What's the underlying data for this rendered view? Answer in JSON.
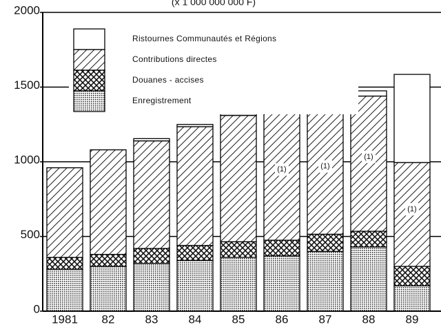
{
  "chart_data": {
    "type": "stacked_bar",
    "subtitle": "(x 1 000 000 000 F)",
    "categories": [
      "1981",
      "82",
      "83",
      "84",
      "85",
      "86",
      "87",
      "88",
      "89"
    ],
    "series": [
      {
        "name": "Enregistrement",
        "pattern": "dots",
        "values": [
          280,
          300,
          320,
          340,
          360,
          370,
          400,
          430,
          170
        ]
      },
      {
        "name": "Douanes - accises",
        "pattern": "crosshatch",
        "values": [
          80,
          80,
          100,
          100,
          105,
          105,
          115,
          105,
          130
        ]
      },
      {
        "name": "Contributions directes",
        "pattern": "hatch",
        "values": [
          600,
          700,
          720,
          795,
          845,
          860,
          825,
          905,
          695
        ]
      },
      {
        "name": "Ristournes Communautés et Régions",
        "pattern": "none",
        "values": [
          0,
          0,
          15,
          15,
          10,
          25,
          55,
          35,
          590
        ]
      }
    ],
    "annotation": "(1)",
    "annotated_categories": [
      5,
      6,
      7,
      8
    ],
    "ylim": [
      0,
      2000
    ],
    "yticks": [
      0,
      500,
      1000,
      1500,
      2000
    ],
    "grid": true
  }
}
